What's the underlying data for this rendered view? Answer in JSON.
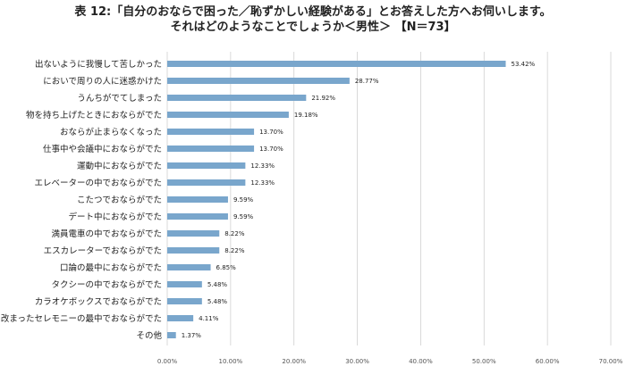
{
  "title_line1": "表 12:「自分のおならで困った／恥ずかしい経験がある」とお答えした方へお伺いします。",
  "title_line2": "それはどのようなことでしょうか＜男性＞ 【N＝73】",
  "chart_data": {
    "type": "bar",
    "orientation": "horizontal",
    "title": "表 12:「自分のおならで困った／恥ずかしい経験がある」とお答えした方へお伺いします。 それはどのようなことでしょうか＜男性＞ 【N＝73】",
    "categories": [
      "出ないように我慢して苦しかった",
      "においで周りの人に迷惑かけた",
      "うんちがでてしまった",
      "物を持ち上げたときにおならがでた",
      "おならが止まらなくなった",
      "仕事中や会議中におならがでた",
      "運動中におならがでた",
      "エレベーターの中でおならがでた",
      "こたつでおならがでた",
      "デート中におならがでた",
      "満員電車の中でおならがでた",
      "エスカレーターでおならがでた",
      "口論の最中におならがでた",
      "タクシーの中でおならがでた",
      "カラオケボックスでおならがでた",
      "改まったセレモニーの最中でおならがでた",
      "その他"
    ],
    "values": [
      53.42,
      28.77,
      21.92,
      19.18,
      13.7,
      13.7,
      12.33,
      12.33,
      9.59,
      9.59,
      8.22,
      8.22,
      6.85,
      5.48,
      5.48,
      4.11,
      1.37
    ],
    "value_labels": [
      "53.42%",
      "28.77%",
      "21.92%",
      "19.18%",
      "13.70%",
      "13.70%",
      "12.33%",
      "12.33%",
      "9.59%",
      "9.59%",
      "8.22%",
      "8.22%",
      "6.85%",
      "5.48%",
      "5.48%",
      "4.11%",
      "1.37%"
    ],
    "xlim": [
      0,
      70
    ],
    "xticks": [
      0,
      10,
      20,
      30,
      40,
      50,
      60,
      70
    ],
    "xtick_labels": [
      "0.00%",
      "10.00%",
      "20.00%",
      "30.00%",
      "40.00%",
      "50.00%",
      "60.00%",
      "70.00%"
    ],
    "grid": true,
    "bar_color": "#79a6cc",
    "grid_color": "#d0d0d0"
  }
}
